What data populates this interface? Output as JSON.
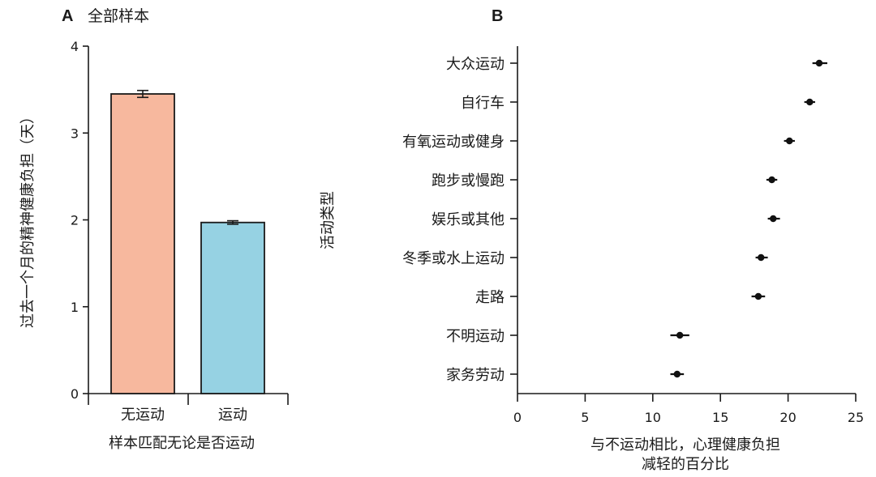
{
  "panels": {
    "a_letter": "A",
    "b_letter": "B"
  },
  "chart_data": [
    {
      "type": "bar",
      "title": "全部样本",
      "xlabel": "样本匹配无论是否运动",
      "ylabel": "过去一个月的精神健康负担（天）",
      "categories": [
        "无运动",
        "运动"
      ],
      "values": [
        3.45,
        1.97
      ],
      "error": [
        0.04,
        0.02
      ],
      "colors": [
        "#F7B89E",
        "#96D2E3"
      ],
      "ylim": [
        0,
        4
      ],
      "yticks": [
        0,
        1,
        2,
        3,
        4
      ],
      "grid": false
    },
    {
      "type": "scatter",
      "title": "",
      "xlabel": [
        "与不运动相比，心理健康负担",
        "减轻的百分比"
      ],
      "ylabel": "活动类型",
      "categories": [
        "大众运动",
        "自行车",
        "有氧运动或健身",
        "跑步或慢跑",
        "娱乐或其他",
        "冬季或水上运动",
        "走路",
        "不明运动",
        "家务劳动"
      ],
      "values": [
        22.3,
        21.6,
        20.1,
        18.8,
        18.9,
        18.0,
        17.8,
        12.0,
        11.8
      ],
      "ci_low": [
        21.8,
        21.2,
        19.7,
        18.4,
        18.5,
        17.6,
        17.3,
        11.3,
        11.3
      ],
      "ci_high": [
        22.9,
        22.0,
        20.5,
        19.2,
        19.4,
        18.5,
        18.3,
        12.7,
        12.3
      ],
      "xlim": [
        0,
        25
      ],
      "xticks": [
        0,
        5,
        10,
        15,
        20,
        25
      ],
      "marker_color": "#111111",
      "grid": false
    }
  ]
}
